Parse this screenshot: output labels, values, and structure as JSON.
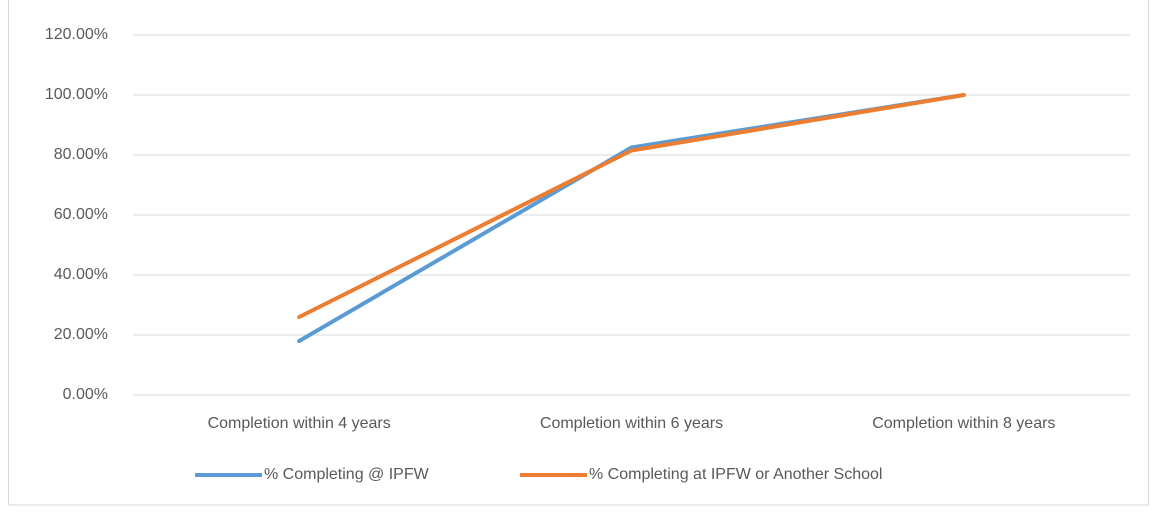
{
  "chart_data": {
    "type": "line",
    "categories": [
      "Completion within 4 years",
      "Completion within 6 years",
      "Completion within 8 years"
    ],
    "series": [
      {
        "name": "% Completing @ IPFW",
        "color": "#5b9bd5",
        "values": [
          18,
          82.5,
          100
        ]
      },
      {
        "name": "% Completing at IPFW or Another School",
        "color": "#ed7d31",
        "values": [
          26,
          81.5,
          100
        ]
      }
    ],
    "ylim": [
      0,
      120
    ],
    "yticks": [
      {
        "value": 0,
        "label": "0.00%"
      },
      {
        "value": 20,
        "label": "20.00%"
      },
      {
        "value": 40,
        "label": "40.00%"
      },
      {
        "value": 60,
        "label": "60.00%"
      },
      {
        "value": 80,
        "label": "80.00%"
      },
      {
        "value": 100,
        "label": "100.00%"
      },
      {
        "value": 120,
        "label": "120.00%"
      }
    ],
    "grid": true,
    "legend": "bottom"
  }
}
